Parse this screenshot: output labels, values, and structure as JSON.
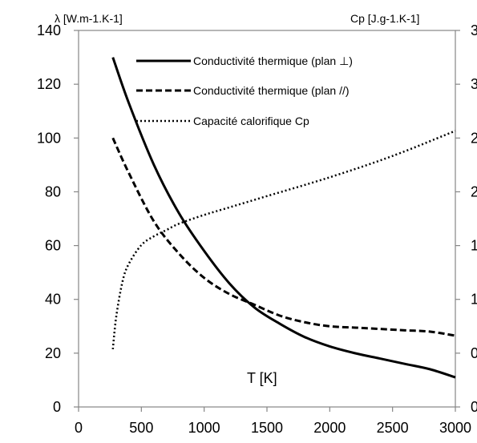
{
  "chart_data": {
    "type": "line",
    "title": "",
    "xlabel": "T [K]",
    "ylabel": "λ [W.m-1.K-1]",
    "y2label": "Cp [J.g-1.K-1]",
    "xlim": [
      0,
      3000
    ],
    "ylim": [
      0,
      140
    ],
    "y2lim": [
      0,
      3
    ],
    "xticks": [
      0,
      500,
      1000,
      1500,
      2000,
      2500,
      3000
    ],
    "yticks": [
      0,
      20,
      40,
      60,
      80,
      100,
      120,
      140
    ],
    "y2ticks_visible": [
      "3",
      "3",
      "2",
      "2",
      "1",
      "1",
      "0",
      "0"
    ],
    "grid": false,
    "legend_position": "top-right",
    "series": [
      {
        "name": "Conductivité thermique (plan ⊥)",
        "style": "solid",
        "axis": "left",
        "color": "#000000",
        "x": [
          273,
          400,
          600,
          800,
          1000,
          1200,
          1400,
          1600,
          1800,
          2000,
          2200,
          2400,
          2600,
          2800,
          3000
        ],
        "y": [
          130,
          113,
          90,
          72,
          58,
          46,
          37,
          31,
          26,
          22.5,
          20,
          18,
          16,
          14,
          11
        ]
      },
      {
        "name": "Conductivité thermique (plan //)",
        "style": "dashed",
        "axis": "left",
        "color": "#000000",
        "x": [
          273,
          400,
          600,
          800,
          1000,
          1200,
          1400,
          1600,
          1800,
          2000,
          2200,
          2400,
          2600,
          2800,
          3000
        ],
        "y": [
          100,
          87,
          69,
          57,
          48,
          42,
          38,
          34,
          31.5,
          30,
          29.5,
          29,
          28.5,
          28,
          26.5
        ]
      },
      {
        "name": "Capacité calorifique Cp",
        "style": "dotted",
        "axis": "right",
        "color": "#000000",
        "x": [
          273,
          300,
          350,
          400,
          500,
          600,
          700,
          800,
          1000,
          1200,
          1500,
          2000,
          2500,
          3000
        ],
        "y": [
          0.46,
          0.72,
          1.0,
          1.14,
          1.29,
          1.36,
          1.41,
          1.46,
          1.53,
          1.59,
          1.68,
          1.83,
          2.0,
          2.2
        ]
      }
    ]
  }
}
